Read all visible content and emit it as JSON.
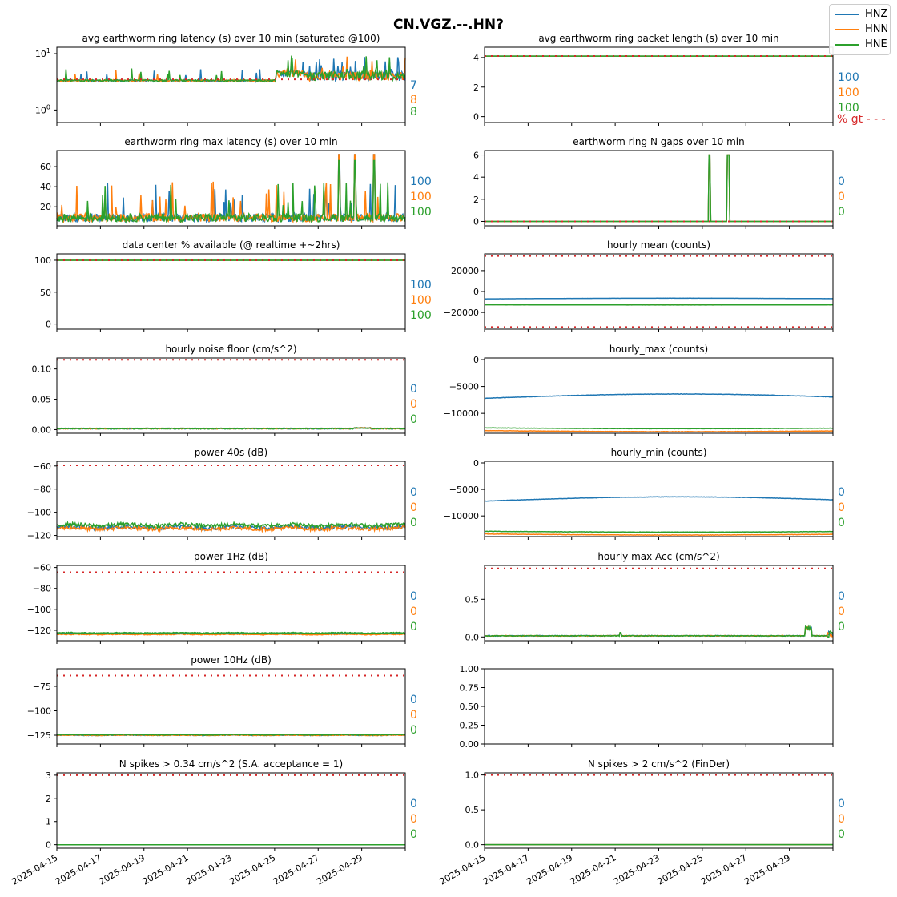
{
  "figure": {
    "title": "CN.VGZ.--.HN?"
  },
  "legend": [
    {
      "name": "HNZ",
      "color": "#1f77b4"
    },
    {
      "name": "HNN",
      "color": "#ff7f0e"
    },
    {
      "name": "HNE",
      "color": "#2ca02c"
    }
  ],
  "colors": {
    "HNZ": "#1f77b4",
    "HNN": "#ff7f0e",
    "HNE": "#2ca02c",
    "threshold": "#d62728"
  },
  "x_axis": {
    "start": "2025-04-15",
    "end": "2025-05-01",
    "tick_labels": [
      "2025-04-15",
      "2025-04-17",
      "2025-04-19",
      "2025-04-21",
      "2025-04-23",
      "2025-04-25",
      "2025-04-27",
      "2025-04-29"
    ]
  },
  "threshold_note": "% gt - - -",
  "chart_data": [
    {
      "id": "latency",
      "type": "line",
      "title": "avg earthworm ring latency (s)   over 10 min (saturated @100)",
      "yscale": "log",
      "ylim": [
        0.6,
        13
      ],
      "yticks": [
        {
          "v": 1,
          "base": "10",
          "exp": "0"
        },
        {
          "v": 10,
          "base": "10",
          "exp": "1"
        }
      ],
      "threshold": 3.5,
      "pattern": {
        "kind": "latency",
        "base": 3.2
      },
      "side_values": [
        "7",
        "8",
        "8"
      ]
    },
    {
      "id": "pktlen",
      "type": "line",
      "title": "avg earthworm ring packet length (s)   over 10 min",
      "ylim": [
        -0.4,
        4.7
      ],
      "yticks": [
        "0",
        "2",
        "4"
      ],
      "threshold": 4.1,
      "pattern": {
        "kind": "flat",
        "values": [
          4.1,
          4.1,
          4.1
        ]
      },
      "side_values": [
        "100",
        "100",
        "100"
      ],
      "note": true
    },
    {
      "id": "maxlat",
      "type": "line",
      "title": "earthworm ring max latency (s)   over 10 min",
      "ylim": [
        1,
        76
      ],
      "yticks": [
        "20",
        "40",
        "60"
      ],
      "pattern": {
        "kind": "maxlat",
        "base": 8
      },
      "side_values": [
        "100",
        "100",
        "100"
      ]
    },
    {
      "id": "ngaps",
      "type": "line",
      "title": "earthworm ring N gaps   over 10 min",
      "ylim": [
        -0.4,
        6.4
      ],
      "yticks": [
        "0",
        "2",
        "4",
        "6"
      ],
      "threshold": 0,
      "pattern": {
        "kind": "gaps",
        "spikes": [
          [
            2025,
            4,
            25.9,
            6
          ],
          [
            2025,
            4,
            26.75,
            6
          ]
        ]
      },
      "side_values": [
        "0",
        "0",
        "0"
      ]
    },
    {
      "id": "avail",
      "type": "line",
      "title": "data center % available (@ realtime +~2hrs)",
      "ylim": [
        -8,
        110
      ],
      "yticks": [
        "0",
        "50",
        "100"
      ],
      "threshold": 100,
      "pattern": {
        "kind": "flat",
        "values": [
          100,
          100,
          100
        ]
      },
      "side_values": [
        "100",
        "100",
        "100"
      ]
    },
    {
      "id": "hmean",
      "type": "line",
      "title": "hourly mean (counts)",
      "ylim": [
        -36000,
        36000
      ],
      "yticks": [
        "−20000",
        "0",
        "20000"
      ],
      "ytick_vals": [
        -20000,
        0,
        20000
      ],
      "thresholds": [
        34000,
        -34000
      ],
      "pattern": {
        "kind": "drift",
        "values": [
          -7000,
          -12500,
          -12700
        ],
        "drift": [
          600,
          -150,
          -200
        ]
      },
      "side_values": []
    },
    {
      "id": "noise",
      "type": "line",
      "title": "hourly noise floor (cm/s^2)",
      "ylim": [
        -0.006,
        0.118
      ],
      "yticks": [
        "0.00",
        "0.05",
        "0.10"
      ],
      "ytick_vals": [
        0,
        0.05,
        0.1
      ],
      "threshold": 0.115,
      "pattern": {
        "kind": "noise",
        "base": 0.001
      },
      "side_values": [
        "0",
        "0",
        "0"
      ]
    },
    {
      "id": "hmax",
      "type": "line",
      "title": "hourly_max (counts)",
      "ylim": [
        -13700,
        300
      ],
      "yticks": [
        "−10000",
        "−5000",
        "0"
      ],
      "ytick_vals": [
        -10000,
        -5000,
        0
      ],
      "pattern": {
        "kind": "drift",
        "values": [
          -7200,
          -13200,
          -12700
        ],
        "drift": [
          800,
          -200,
          -150
        ]
      },
      "side_values": []
    },
    {
      "id": "p40",
      "type": "line",
      "title": "power 40s (dB)",
      "ylim": [
        -121,
        -56
      ],
      "yticks": [
        "−120",
        "−100",
        "−80",
        "−60"
      ],
      "ytick_vals": [
        -120,
        -100,
        -80,
        -60
      ],
      "threshold": -59.5,
      "pattern": {
        "kind": "power",
        "values": [
          -113,
          -114,
          -111
        ],
        "jitter": 1.6
      },
      "side_values": [
        "0",
        "0",
        "0"
      ]
    },
    {
      "id": "hmin",
      "type": "line",
      "title": "hourly_min (counts)",
      "ylim": [
        -13900,
        300
      ],
      "yticks": [
        "−10000",
        "−5000",
        "0"
      ],
      "ytick_vals": [
        -10000,
        -5000,
        0
      ],
      "pattern": {
        "kind": "drift",
        "values": [
          -7200,
          -13400,
          -12900
        ],
        "drift": [
          800,
          -200,
          -150
        ]
      },
      "side_values": [
        "0",
        "0",
        "0"
      ]
    },
    {
      "id": "p1",
      "type": "line",
      "title": "power 1Hz (dB)",
      "ylim": [
        -130,
        -58
      ],
      "yticks": [
        "−120",
        "−100",
        "−80",
        "−60"
      ],
      "ytick_vals": [
        -120,
        -100,
        -80,
        -60
      ],
      "threshold": -64.5,
      "pattern": {
        "kind": "power",
        "values": [
          -123,
          -124,
          -122.5
        ],
        "jitter": 0.4
      },
      "side_values": [
        "0",
        "0",
        "0"
      ]
    },
    {
      "id": "hmaxacc",
      "type": "line",
      "title": "hourly max Acc (cm/s^2)",
      "ylim": [
        -0.05,
        0.95
      ],
      "yticks": [
        "0.0",
        "0.5"
      ],
      "ytick_vals": [
        0,
        0.5
      ],
      "threshold": 0.91,
      "pattern": {
        "kind": "acc",
        "base": 0.01
      },
      "side_values": [
        "0",
        "0",
        "0"
      ]
    },
    {
      "id": "p10",
      "type": "line",
      "title": "power 10Hz (dB)",
      "ylim": [
        -134,
        -57
      ],
      "yticks": [
        "−125",
        "−100",
        "−75"
      ],
      "ytick_vals": [
        -125,
        -100,
        -75
      ],
      "threshold": -64,
      "pattern": {
        "kind": "power",
        "values": [
          -125,
          -125,
          -124.5
        ],
        "jitter": 0.4
      },
      "side_values": [
        "0",
        "0",
        "0"
      ]
    },
    {
      "id": "empty",
      "type": "line",
      "title": "",
      "ylim": [
        0,
        1
      ],
      "yticks": [
        "0.00",
        "0.25",
        "0.50",
        "0.75",
        "1.00"
      ],
      "ytick_vals": [
        0,
        0.25,
        0.5,
        0.75,
        1.0
      ],
      "pattern": {
        "kind": "none"
      },
      "side_values": []
    },
    {
      "id": "spk034",
      "type": "line",
      "title": "N spikes > 0.34 cm/s^2 (S.A. acceptance = 1)",
      "ylim": [
        -0.15,
        3.1
      ],
      "yticks": [
        "0",
        "1",
        "2",
        "3"
      ],
      "ytick_vals": [
        0,
        1,
        2,
        3
      ],
      "threshold": 3,
      "pattern": {
        "kind": "flat",
        "values": [
          0,
          0,
          0
        ]
      },
      "side_values": [
        "0",
        "0",
        "0"
      ]
    },
    {
      "id": "spk2",
      "type": "line",
      "title": "N spikes > 2 cm/s^2 (FinDer)",
      "ylim": [
        -0.05,
        1.03
      ],
      "yticks": [
        "0.0",
        "0.5",
        "1.0"
      ],
      "ytick_vals": [
        0,
        0.5,
        1.0
      ],
      "threshold": 1,
      "pattern": {
        "kind": "flat",
        "values": [
          0,
          0,
          0
        ]
      },
      "side_values": [
        "0",
        "0",
        "0"
      ]
    }
  ]
}
